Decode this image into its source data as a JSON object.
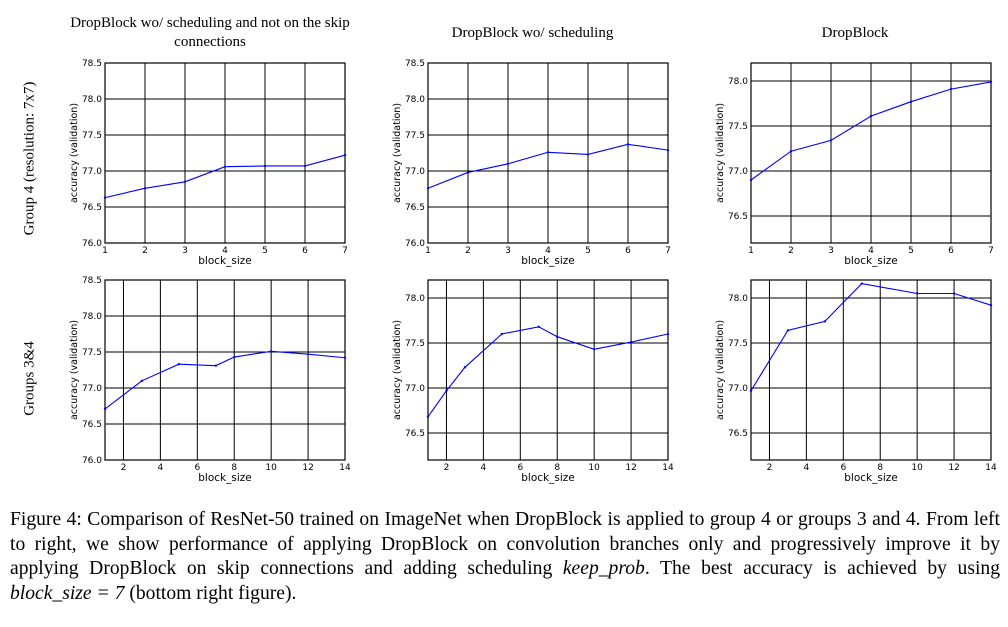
{
  "column_titles": [
    "DropBlock wo/ scheduling and not on the skip connections",
    "DropBlock wo/ scheduling",
    "DropBlock"
  ],
  "row_labels": [
    "Group 4 (resolution: 7x7)",
    "Groups 3&4"
  ],
  "caption": {
    "part1": "Figure 4: Comparison of ResNet-50 trained on ImageNet when DropBlock is applied to group 4 or groups 3 and 4. From left to right, we show performance of applying DropBlock on convolution branches only and progressively improve it by applying DropBlock on skip connections and adding scheduling ",
    "keep_prob": "keep_prob",
    "part2": ". The best accuracy is achieved by using ",
    "block_size_eq": "block_size = 7",
    "part3": " (bottom right figure)."
  },
  "colors": {
    "line": "#0000ff",
    "grid": "#000000",
    "text": "#000000"
  },
  "chart_data": [
    {
      "type": "line",
      "id": "g4-noskip",
      "row": 0,
      "col": 0,
      "xlabel": "block_size",
      "ylabel": "accuracy (validation)",
      "xlim": [
        1,
        7
      ],
      "ylim": [
        76.0,
        78.5
      ],
      "xticks": [
        "1",
        "2",
        "3",
        "4",
        "5",
        "6",
        "7"
      ],
      "yticks": [
        "76.0",
        "76.5",
        "77.0",
        "77.5",
        "78.0",
        "78.5"
      ],
      "x": [
        1,
        2,
        3,
        4,
        5,
        6,
        7
      ],
      "y": [
        76.63,
        76.76,
        76.85,
        77.06,
        77.07,
        77.07,
        77.22
      ]
    },
    {
      "type": "line",
      "id": "g4-skip",
      "row": 0,
      "col": 1,
      "xlabel": "block_size",
      "ylabel": "accuracy (validation)",
      "xlim": [
        1,
        7
      ],
      "ylim": [
        76.0,
        78.5
      ],
      "xticks": [
        "1",
        "2",
        "3",
        "4",
        "5",
        "6",
        "7"
      ],
      "yticks": [
        "76.0",
        "76.5",
        "77.0",
        "77.5",
        "78.0",
        "78.5"
      ],
      "x": [
        1,
        2,
        3,
        4,
        5,
        6,
        7
      ],
      "y": [
        76.76,
        76.98,
        77.1,
        77.26,
        77.23,
        77.37,
        77.29
      ]
    },
    {
      "type": "line",
      "id": "g4-sched",
      "row": 0,
      "col": 2,
      "xlabel": "block_size",
      "ylabel": "accuracy (validation)",
      "xlim": [
        1,
        7
      ],
      "ylim": [
        76.2,
        78.2
      ],
      "xticks": [
        "1",
        "2",
        "3",
        "4",
        "5",
        "6",
        "7"
      ],
      "yticks": [
        "76.5",
        "77.0",
        "77.5",
        "78.0"
      ],
      "x": [
        1,
        2,
        3,
        4,
        5,
        6,
        7
      ],
      "y": [
        76.9,
        77.22,
        77.34,
        77.61,
        77.77,
        77.91,
        77.99
      ]
    },
    {
      "type": "line",
      "id": "g34-noskip",
      "row": 1,
      "col": 0,
      "xlabel": "block_size",
      "ylabel": "accuracy (validation)",
      "xlim": [
        1,
        14
      ],
      "ylim": [
        76.0,
        78.5
      ],
      "xticks": [
        "2",
        "4",
        "6",
        "8",
        "10",
        "12",
        "14"
      ],
      "yticks": [
        "76.0",
        "76.5",
        "77.0",
        "77.5",
        "78.0",
        "78.5"
      ],
      "x": [
        1,
        3,
        5,
        7,
        8,
        10,
        12,
        14
      ],
      "y": [
        76.71,
        77.1,
        77.33,
        77.31,
        77.43,
        77.51,
        77.47,
        77.42
      ]
    },
    {
      "type": "line",
      "id": "g34-skip",
      "row": 1,
      "col": 1,
      "xlabel": "block_size",
      "ylabel": "accuracy (validation)",
      "xlim": [
        1,
        14
      ],
      "ylim": [
        76.2,
        78.2
      ],
      "xticks": [
        "2",
        "4",
        "6",
        "8",
        "10",
        "12",
        "14"
      ],
      "yticks": [
        "76.5",
        "77.0",
        "77.5",
        "78.0"
      ],
      "x": [
        1,
        2,
        3,
        5,
        7,
        8,
        10,
        12,
        14
      ],
      "y": [
        76.68,
        76.97,
        77.23,
        77.6,
        77.68,
        77.57,
        77.43,
        77.51,
        77.6
      ]
    },
    {
      "type": "line",
      "id": "g34-sched",
      "row": 1,
      "col": 2,
      "xlabel": "block_size",
      "ylabel": "accuracy (validation)",
      "xlim": [
        1,
        14
      ],
      "ylim": [
        76.2,
        78.2
      ],
      "xticks": [
        "2",
        "4",
        "6",
        "8",
        "10",
        "12",
        "14"
      ],
      "yticks": [
        "76.5",
        "77.0",
        "77.5",
        "78.0"
      ],
      "x": [
        1,
        3,
        5,
        7,
        10,
        12,
        14
      ],
      "y": [
        76.97,
        77.64,
        77.74,
        78.16,
        78.05,
        78.05,
        77.92
      ]
    }
  ]
}
